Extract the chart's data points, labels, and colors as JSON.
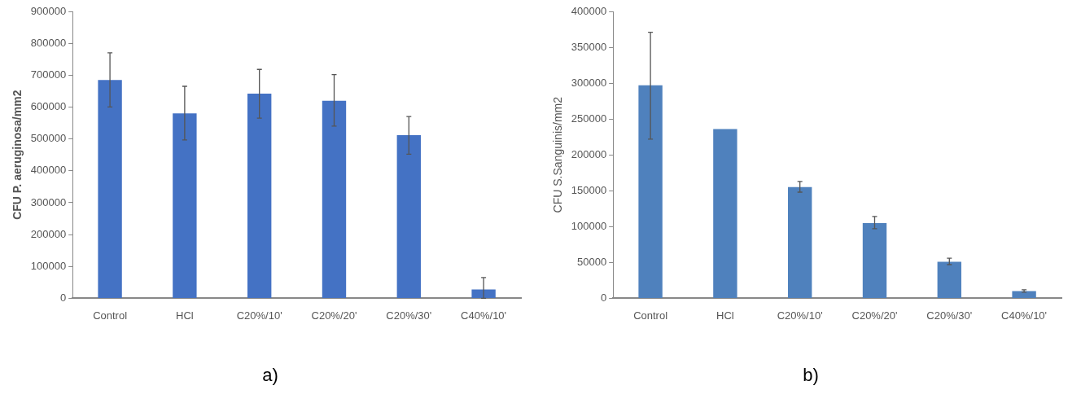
{
  "chart_data": [
    {
      "type": "bar",
      "ylabel": "CFU P. aeruginosa/mm2",
      "categories": [
        "Control",
        "HCl",
        "C20%/10'",
        "C20%/20'",
        "C20%/30'",
        "C40%/10'"
      ],
      "color": "#4472c4",
      "values": [
        685000,
        580000,
        642000,
        620000,
        512000,
        28000
      ],
      "errors": [
        [
          600000,
          770000
        ],
        [
          497000,
          665000
        ],
        [
          565000,
          718000
        ],
        [
          540000,
          702000
        ],
        [
          452000,
          570000
        ],
        [
          0,
          65000
        ]
      ],
      "ylim": [
        0,
        900000
      ],
      "yticks": [
        0,
        100000,
        200000,
        300000,
        400000,
        500000,
        600000,
        700000,
        800000,
        900000
      ],
      "grid": false,
      "legend": false,
      "annotations": [
        "a)"
      ]
    },
    {
      "type": "bar",
      "ylabel": "CFU S.Sanguinis/mm2",
      "categories": [
        "Control",
        "HCl",
        "C20%/10'",
        "C20%/20'",
        "C20%/30'",
        "C40%/10'"
      ],
      "color": "#4f81bd",
      "values": [
        297000,
        236000,
        155000,
        105000,
        51000,
        10000
      ],
      "errors": [
        [
          222000,
          371000
        ],
        null,
        [
          148000,
          163000
        ],
        [
          97000,
          114000
        ],
        [
          47000,
          56000
        ],
        [
          8500,
          12000
        ]
      ],
      "ylim": [
        0,
        400000
      ],
      "yticks": [
        0,
        50000,
        100000,
        150000,
        200000,
        250000,
        300000,
        350000,
        400000
      ],
      "grid": false,
      "legend": false,
      "annotations": [
        "b)"
      ]
    }
  ]
}
